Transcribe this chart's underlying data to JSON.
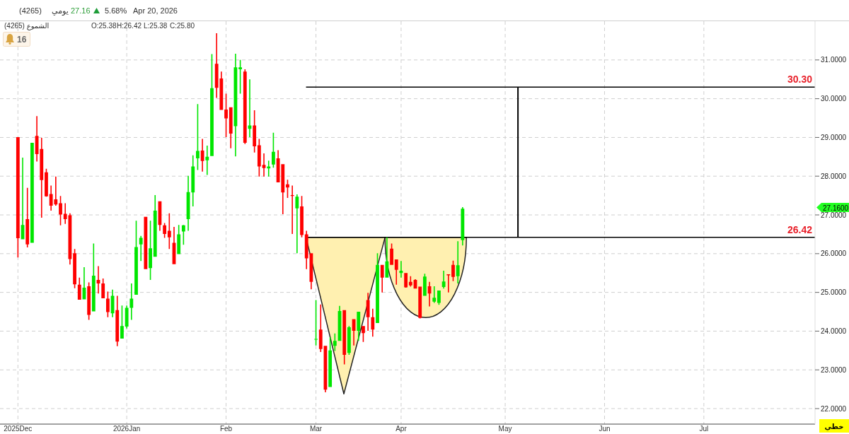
{
  "chart_data": {
    "type": "candlestick",
    "title": "(4265)",
    "categories": [
      "2025Dec",
      null,
      null,
      null,
      null,
      null,
      null,
      null,
      null,
      null,
      null,
      null,
      null,
      null,
      null,
      null,
      null,
      null,
      null,
      null,
      null,
      null,
      null,
      "2026Jan",
      null,
      null,
      null,
      null,
      null,
      null,
      null,
      null,
      null,
      null,
      null,
      null,
      null,
      null,
      null,
      null,
      null,
      null,
      null,
      null,
      "Feb",
      null,
      null,
      null,
      null,
      null,
      null,
      null,
      null,
      null,
      null,
      null,
      null,
      null,
      null,
      null,
      null,
      null,
      null,
      "Mar",
      null,
      null,
      null,
      null,
      null,
      null,
      null,
      null,
      null,
      null,
      null,
      null,
      null,
      null,
      null,
      null,
      null,
      "Apr",
      null,
      null,
      null,
      null,
      null,
      null,
      null,
      null,
      null,
      null,
      null,
      null,
      null,
      null,
      null,
      null,
      null,
      null,
      null,
      null,
      null,
      "May",
      null,
      null,
      null,
      null,
      null,
      null,
      null,
      null,
      null,
      null,
      null,
      null,
      null,
      null,
      null,
      null,
      null,
      null,
      null,
      null,
      "Jun",
      null,
      null,
      null,
      null,
      null,
      null,
      null,
      null,
      null,
      null,
      null,
      null,
      null,
      null,
      null,
      null,
      null,
      null,
      null,
      null,
      "Jul",
      null,
      null,
      null,
      null,
      null,
      null,
      null,
      null,
      null,
      null,
      null,
      null,
      null,
      null,
      null,
      null,
      null,
      null,
      null,
      null,
      null,
      null,
      null
    ],
    "ohlc": [
      [
        29.01,
        29.01,
        25.9,
        26.4
      ],
      [
        26.37,
        28.48,
        26.37,
        26.74
      ],
      [
        26.89,
        27.7,
        26.16,
        26.24
      ],
      [
        26.28,
        28.86,
        26.28,
        28.86
      ],
      [
        29.04,
        29.55,
        28.38,
        28.57
      ],
      [
        28.7,
        28.99,
        26.93,
        27.9
      ],
      [
        28.1,
        28.19,
        27.47,
        27.48
      ],
      [
        27.54,
        27.76,
        27.11,
        27.24
      ],
      [
        27.4,
        27.99,
        27.24,
        27.27
      ],
      [
        27.3,
        27.49,
        26.73,
        27.01
      ],
      [
        27.03,
        27.3,
        26.77,
        26.89
      ],
      [
        26.99,
        27.04,
        25.72,
        25.86
      ],
      [
        26.01,
        26.12,
        25.11,
        25.21
      ],
      [
        25.2,
        25.38,
        24.81,
        24.81
      ],
      [
        24.82,
        25.65,
        24.82,
        25.12
      ],
      [
        25.16,
        25.26,
        24.29,
        24.42
      ],
      [
        24.51,
        26.26,
        24.51,
        25.43
      ],
      [
        25.32,
        25.68,
        24.97,
        25.23
      ],
      [
        25.23,
        25.36,
        24.85,
        24.85
      ],
      [
        24.84,
        25.02,
        24.36,
        24.49
      ],
      [
        24.46,
        25.07,
        24.36,
        24.91
      ],
      [
        24.54,
        24.91,
        23.61,
        23.73
      ],
      [
        23.81,
        24.66,
        23.81,
        24.13
      ],
      [
        24.12,
        24.66,
        24.07,
        24.6
      ],
      [
        24.6,
        25.23,
        24.29,
        24.84
      ],
      [
        24.94,
        26.85,
        24.94,
        26.17
      ],
      [
        26.24,
        26.46,
        25.81,
        26.41
      ],
      [
        26.95,
        26.95,
        25.6,
        25.6
      ],
      [
        25.63,
        26.85,
        25.32,
        26.14
      ],
      [
        25.92,
        27.51,
        25.92,
        27.11
      ],
      [
        27.35,
        27.35,
        26.59,
        26.74
      ],
      [
        26.73,
        26.79,
        26.41,
        26.51
      ],
      [
        26.59,
        27.04,
        26.12,
        26.42
      ],
      [
        26.28,
        26.69,
        25.73,
        25.73
      ],
      [
        25.99,
        26.74,
        25.99,
        26.5
      ],
      [
        26.57,
        26.74,
        26.23,
        26.73
      ],
      [
        26.89,
        28.01,
        26.59,
        27.59
      ],
      [
        27.58,
        28.54,
        27.22,
        28.25
      ],
      [
        28.46,
        29.86,
        28.16,
        28.65
      ],
      [
        28.66,
        28.96,
        28.12,
        28.39
      ],
      [
        28.41,
        28.79,
        28.03,
        28.5
      ],
      [
        28.52,
        31.15,
        28.52,
        30.27
      ],
      [
        30.9,
        31.69,
        30.02,
        30.28
      ],
      [
        30.52,
        30.7,
        29.71,
        29.71
      ],
      [
        29.72,
        30.13,
        29.01,
        29.49
      ],
      [
        29.78,
        29.78,
        28.72,
        29.1
      ],
      [
        29.29,
        31.16,
        28.51,
        30.81
      ],
      [
        30.76,
        31.0,
        30.13,
        30.81
      ],
      [
        30.7,
        30.76,
        28.83,
        28.86
      ],
      [
        29.22,
        30.5,
        29.01,
        29.31
      ],
      [
        29.31,
        29.7,
        28.61,
        28.77
      ],
      [
        28.8,
        28.96,
        27.99,
        28.25
      ],
      [
        28.29,
        28.59,
        27.99,
        28.21
      ],
      [
        28.2,
        28.4,
        27.99,
        28.25
      ],
      [
        28.3,
        29.12,
        28.22,
        28.63
      ],
      [
        28.46,
        28.67,
        27.84,
        27.84
      ],
      [
        28.31,
        28.31,
        27.02,
        27.58
      ],
      [
        27.79,
        27.91,
        27.44,
        27.71
      ],
      [
        27.51,
        27.76,
        26.51,
        27.49
      ],
      [
        27.17,
        27.53,
        26.01,
        27.47
      ],
      [
        27.22,
        27.49,
        26.42,
        26.48
      ],
      [
        26.5,
        26.59,
        25.6,
        25.88
      ],
      [
        26.01,
        26.01,
        25.08,
        25.27
      ],
      [
        23.79,
        24.8,
        23.63,
        23.8
      ],
      [
        24.04,
        24.69,
        23.46,
        23.54
      ],
      [
        23.62,
        23.62,
        22.42,
        22.49
      ],
      [
        22.56,
        23.84,
        22.56,
        23.5
      ],
      [
        23.62,
        23.94,
        23.49,
        23.75
      ],
      [
        23.75,
        24.65,
        23.75,
        24.52
      ],
      [
        24.54,
        24.54,
        23.14,
        23.39
      ],
      [
        23.44,
        24.13,
        23.39,
        24.1
      ],
      [
        24.31,
        24.31,
        23.63,
        24.01
      ],
      [
        24.01,
        24.5,
        23.75,
        24.5
      ],
      [
        24.13,
        24.13,
        23.72,
        23.95
      ],
      [
        24.8,
        24.99,
        24.01,
        24.36
      ],
      [
        24.36,
        24.58,
        23.86,
        24.04
      ],
      [
        24.21,
        26.01,
        24.21,
        25.71
      ],
      [
        25.71,
        25.71,
        25.0,
        25.38
      ],
      [
        25.38,
        26.42,
        25.38,
        25.8
      ],
      [
        26.13,
        26.26,
        25.71,
        25.71
      ],
      [
        25.85,
        25.85,
        25.2,
        25.58
      ],
      [
        25.5,
        25.81,
        25.38,
        25.56
      ],
      [
        25.5,
        25.5,
        25.12,
        25.13
      ],
      [
        25.27,
        25.42,
        25.15,
        25.18
      ],
      [
        25.32,
        25.34,
        25.1,
        25.1
      ],
      [
        25.15,
        25.15,
        24.33,
        24.34
      ],
      [
        24.91,
        25.48,
        24.91,
        25.41
      ],
      [
        25.16,
        25.27,
        24.64,
        24.97
      ],
      [
        24.76,
        25.16,
        24.73,
        24.86
      ],
      [
        24.73,
        25.05,
        24.68,
        25.05
      ],
      [
        25.14,
        25.56,
        25.1,
        25.28
      ],
      [
        25.47,
        25.47,
        25.0,
        25.44
      ],
      [
        25.71,
        25.82,
        25.29,
        25.4
      ],
      [
        25.42,
        26.32,
        25.23,
        25.7
      ],
      [
        26.35,
        27.2,
        26.21,
        27.16
      ],
      null,
      null,
      null,
      null,
      null,
      null,
      null,
      null,
      null,
      null,
      null,
      null,
      null,
      null,
      null,
      null,
      null,
      null,
      null,
      null,
      null,
      null,
      null,
      null,
      null,
      null,
      null,
      null,
      null,
      null,
      null,
      null,
      null,
      null,
      null,
      null,
      null,
      null,
      null,
      null,
      null,
      null,
      null,
      null,
      null,
      null,
      null,
      null,
      null,
      null,
      null,
      null,
      null,
      null,
      null,
      null,
      null,
      null,
      null,
      null,
      null,
      null,
      null,
      null,
      null,
      null,
      null,
      null,
      null,
      null,
      null,
      null,
      null,
      null
    ],
    "ylim": [
      21.6,
      32.0
    ],
    "yticks": [
      {
        "value": 22,
        "label": "22.0000"
      },
      {
        "value": 23,
        "label": "23.0000"
      },
      {
        "value": 24,
        "label": "24.0000"
      },
      {
        "value": 25,
        "label": "25.0000"
      },
      {
        "value": 26,
        "label": "26.0000"
      },
      {
        "value": 27,
        "label": "27.0000"
      },
      {
        "value": 28,
        "label": "28.0000"
      },
      {
        "value": 29,
        "label": "29.0000"
      },
      {
        "value": 30,
        "label": "30.0000"
      },
      {
        "value": 31,
        "label": "31.0000"
      }
    ],
    "grid": true,
    "ref_lines": [
      {
        "axis": "y",
        "value": 30.3,
        "label": "30.30",
        "color": "#000000"
      },
      {
        "axis": "y",
        "value": 26.42,
        "label": "26.42",
        "color": "#000000"
      }
    ],
    "annotations": [
      "يومي",
      "27.16",
      "5.68%",
      "Apr 20, 2026",
      "(4265) الشموع",
      "O:25.38",
      "H:26.42",
      "L:25.38",
      "C:25.80",
      "16",
      "27.1600",
      "خطي"
    ]
  }
}
